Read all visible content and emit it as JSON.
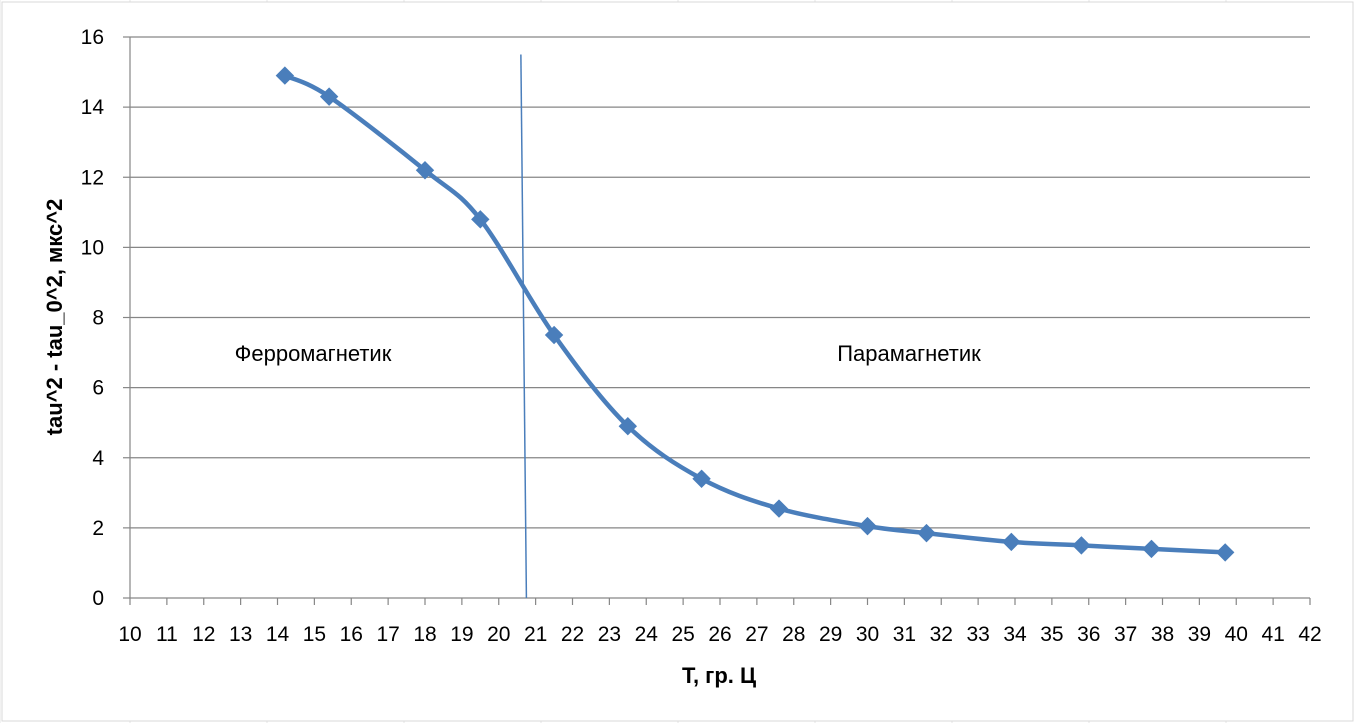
{
  "chart_data": {
    "type": "line",
    "title": "",
    "xlabel": "T, гр. Ц",
    "ylabel": "tau^2 - tau_0^2, мкс^2",
    "xlim": [
      10,
      42
    ],
    "ylim": [
      0,
      16
    ],
    "x_ticks": [
      "10",
      "11",
      "12",
      "13",
      "14",
      "15",
      "16",
      "17",
      "18",
      "19",
      "20",
      "21",
      "22",
      "23",
      "24",
      "25",
      "26",
      "27",
      "28",
      "29",
      "30",
      "31",
      "32",
      "33",
      "34",
      "35",
      "36",
      "37",
      "38",
      "39",
      "40",
      "41",
      "42"
    ],
    "y_ticks": [
      "0",
      "2",
      "4",
      "6",
      "8",
      "10",
      "12",
      "14",
      "16"
    ],
    "grid": "horizontal",
    "legend": "none",
    "smooth": true,
    "series_color": "#4a7ebb",
    "series": [
      {
        "x": [
          14.2,
          15.4,
          18.0,
          19.5,
          21.5,
          23.5,
          25.5,
          27.6,
          30.0,
          31.6,
          33.9,
          35.8,
          37.7,
          39.7
        ],
        "y": [
          14.9,
          14.3,
          12.2,
          10.8,
          7.5,
          4.9,
          3.4,
          2.55,
          2.05,
          1.85,
          1.6,
          1.5,
          1.4,
          1.3
        ]
      }
    ],
    "boundary_line": {
      "x_top": 20.6,
      "y_top": 15.5,
      "x_bottom": 20.75,
      "y_bottom": 0
    },
    "annotations": [
      "Ферромагнетик",
      "Парамагнетик"
    ]
  }
}
